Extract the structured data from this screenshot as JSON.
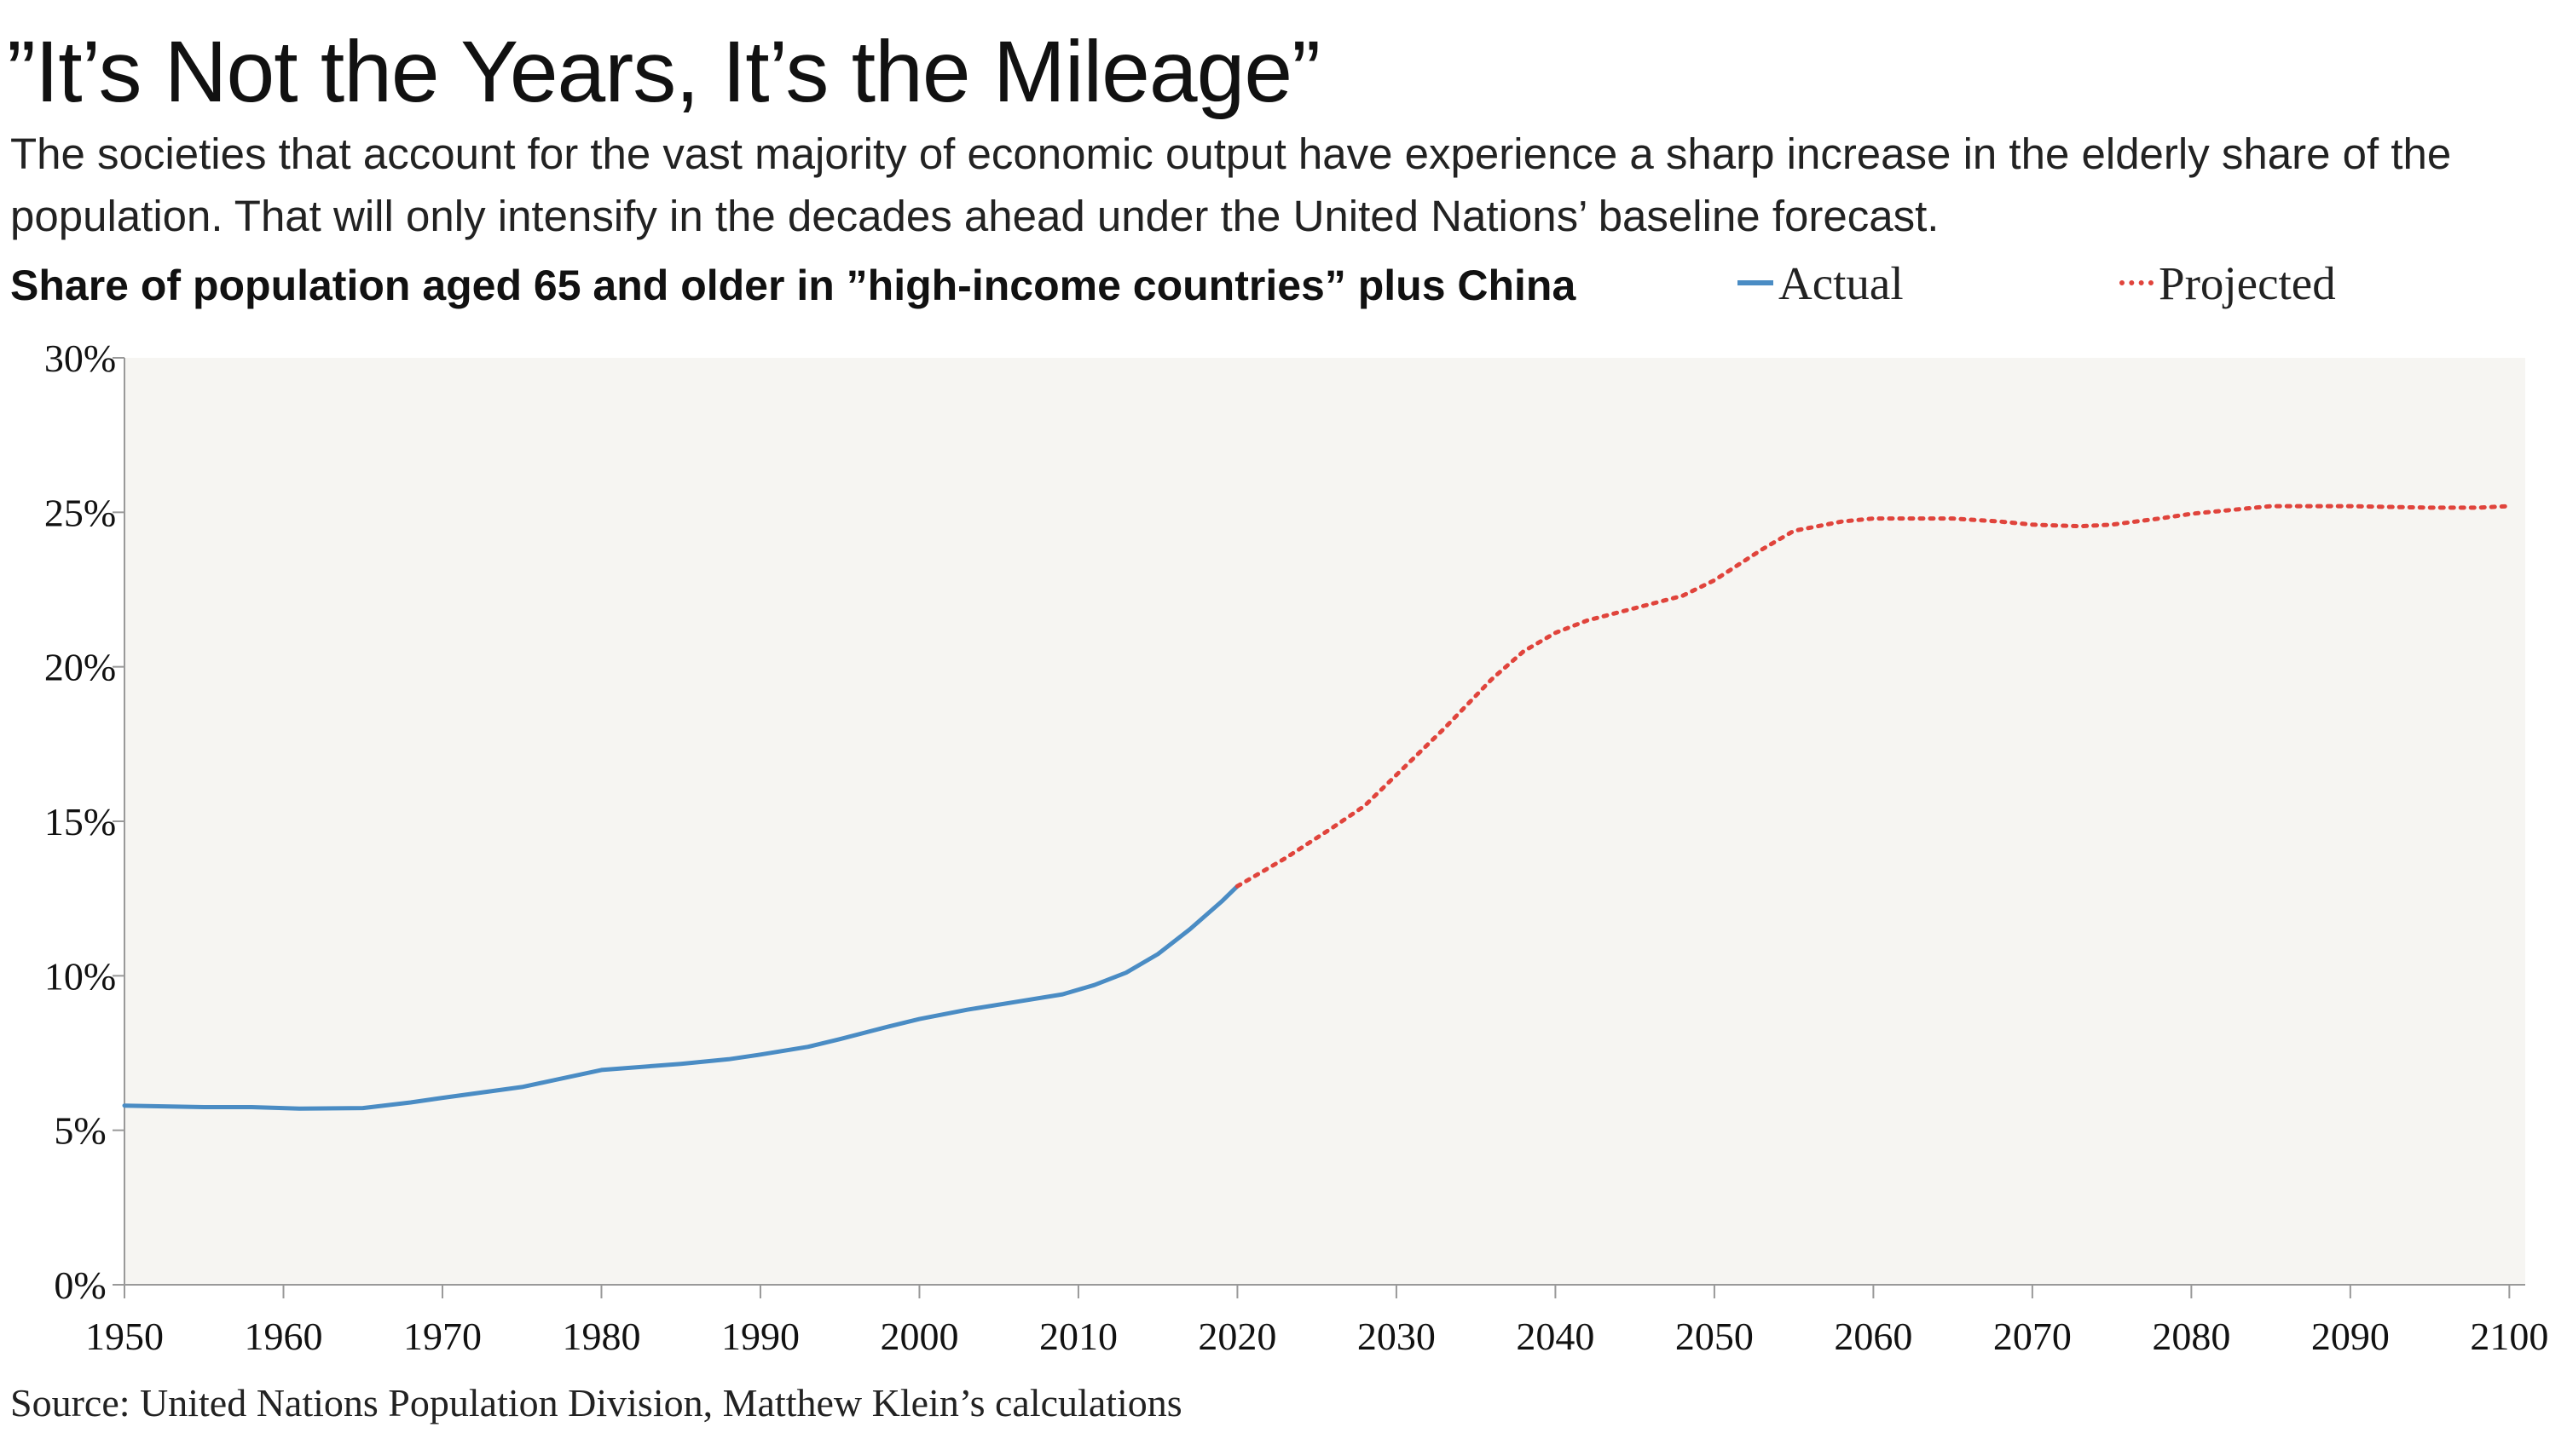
{
  "header": {
    "title": "”It’s Not the Years, It’s the Mileage”",
    "subtitle": "The societies that account for the vast majority of economic output have experience a sharp increase in the elderly share of the population. That will only intensify in the decades ahead under the United Nations’ baseline forecast."
  },
  "source": "Source: United Nations Population Division, Matthew Klein’s calculations",
  "colors": {
    "actual": "#4a8cc4",
    "projected": "#e0443c",
    "plot_background": "#f6f5f2",
    "axis": "#999999"
  },
  "chart_data": {
    "type": "line",
    "title": "Share of population aged 65 and older in ”high-income countries” plus China",
    "xlabel": "",
    "ylabel": "",
    "xlim": [
      1950,
      2101
    ],
    "ylim": [
      0,
      30
    ],
    "x_ticks": [
      1950,
      1960,
      1970,
      1980,
      1990,
      2000,
      2010,
      2020,
      2030,
      2040,
      2050,
      2060,
      2070,
      2080,
      2090,
      2100
    ],
    "y_ticks": [
      0,
      5,
      10,
      15,
      20,
      25,
      30
    ],
    "y_tick_labels": [
      "0%",
      "5%",
      "10%",
      "15%",
      "20%",
      "25%",
      "30%"
    ],
    "grid": false,
    "legend_position": "top-right",
    "series": [
      {
        "name": "Actual",
        "style": "solid",
        "points": [
          [
            1950,
            5.8
          ],
          [
            1955,
            5.75
          ],
          [
            1958,
            5.75
          ],
          [
            1961,
            5.7
          ],
          [
            1965,
            5.72
          ],
          [
            1968,
            5.9
          ],
          [
            1970,
            6.05
          ],
          [
            1975,
            6.4
          ],
          [
            1980,
            6.95
          ],
          [
            1985,
            7.15
          ],
          [
            1988,
            7.3
          ],
          [
            1990,
            7.45
          ],
          [
            1993,
            7.7
          ],
          [
            1995,
            7.95
          ],
          [
            1998,
            8.35
          ],
          [
            2000,
            8.6
          ],
          [
            2003,
            8.9
          ],
          [
            2006,
            9.15
          ],
          [
            2009,
            9.4
          ],
          [
            2011,
            9.7
          ],
          [
            2013,
            10.1
          ],
          [
            2015,
            10.7
          ],
          [
            2017,
            11.5
          ],
          [
            2019,
            12.4
          ],
          [
            2020,
            12.9
          ]
        ]
      },
      {
        "name": "Projected",
        "style": "dotted",
        "points": [
          [
            2020,
            12.9
          ],
          [
            2023,
            13.8
          ],
          [
            2026,
            14.8
          ],
          [
            2028,
            15.5
          ],
          [
            2030,
            16.5
          ],
          [
            2033,
            18.0
          ],
          [
            2036,
            19.6
          ],
          [
            2038,
            20.5
          ],
          [
            2040,
            21.1
          ],
          [
            2042,
            21.5
          ],
          [
            2045,
            21.9
          ],
          [
            2048,
            22.3
          ],
          [
            2050,
            22.8
          ],
          [
            2053,
            23.8
          ],
          [
            2055,
            24.4
          ],
          [
            2058,
            24.7
          ],
          [
            2060,
            24.8
          ],
          [
            2063,
            24.8
          ],
          [
            2065,
            24.8
          ],
          [
            2068,
            24.7
          ],
          [
            2070,
            24.6
          ],
          [
            2073,
            24.55
          ],
          [
            2075,
            24.6
          ],
          [
            2078,
            24.8
          ],
          [
            2080,
            24.95
          ],
          [
            2083,
            25.1
          ],
          [
            2085,
            25.2
          ],
          [
            2090,
            25.2
          ],
          [
            2095,
            25.15
          ],
          [
            2098,
            25.15
          ],
          [
            2100,
            25.2
          ]
        ]
      }
    ]
  }
}
